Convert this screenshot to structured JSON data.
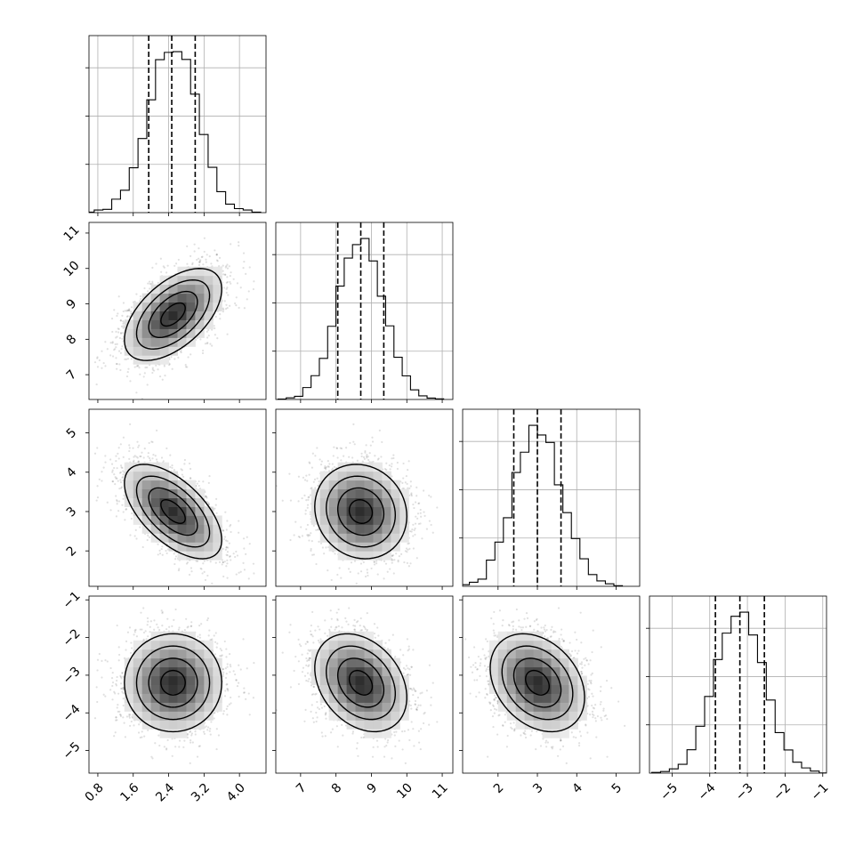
{
  "chart_data": {
    "type": "corner",
    "title": "",
    "parameters": [
      {
        "name": "",
        "range": [
          0.6,
          4.6
        ],
        "ticks": [
          0.8,
          1.6,
          2.4,
          3.2,
          4.0
        ],
        "tick_labels": [
          "0.8",
          "1.6",
          "2.4",
          "3.2",
          "4.0"
        ],
        "mean": 2.5,
        "sd": 0.55,
        "quantiles": [
          1.95,
          2.47,
          3.0
        ]
      },
      {
        "name": "",
        "range": [
          6.3,
          11.3
        ],
        "ticks": [
          7,
          8,
          9,
          10,
          11
        ],
        "tick_labels": [
          "7",
          "8",
          "9",
          "10",
          "11"
        ],
        "mean": 8.7,
        "sd": 0.65,
        "quantiles": [
          8.05,
          8.7,
          9.35
        ]
      },
      {
        "name": "",
        "range": [
          1.1,
          5.6
        ],
        "ticks": [
          2,
          3,
          4,
          5
        ],
        "tick_labels": [
          "2",
          "3",
          "4",
          "5"
        ],
        "mean": 3.0,
        "sd": 0.6,
        "quantiles": [
          2.4,
          3.0,
          3.6
        ]
      },
      {
        "name": "",
        "range": [
          -5.6,
          -0.9
        ],
        "ticks": [
          -5,
          -4,
          -3,
          -2,
          -1
        ],
        "tick_labels": [
          "−5",
          "−4",
          "−3",
          "−2",
          "−1"
        ],
        "mean": -3.2,
        "sd": 0.65,
        "quantiles": [
          -3.85,
          -3.2,
          -2.55
        ]
      }
    ],
    "correlations": {
      "0-1": 0.55,
      "0-2": -0.6,
      "0-3": 0.0,
      "1-2": -0.1,
      "1-3": -0.3,
      "2-3": -0.3
    },
    "contour_levels_sigma": [
      0.5,
      1.0,
      1.5,
      2.0
    ],
    "histogram_bins": 20,
    "grid": true
  }
}
